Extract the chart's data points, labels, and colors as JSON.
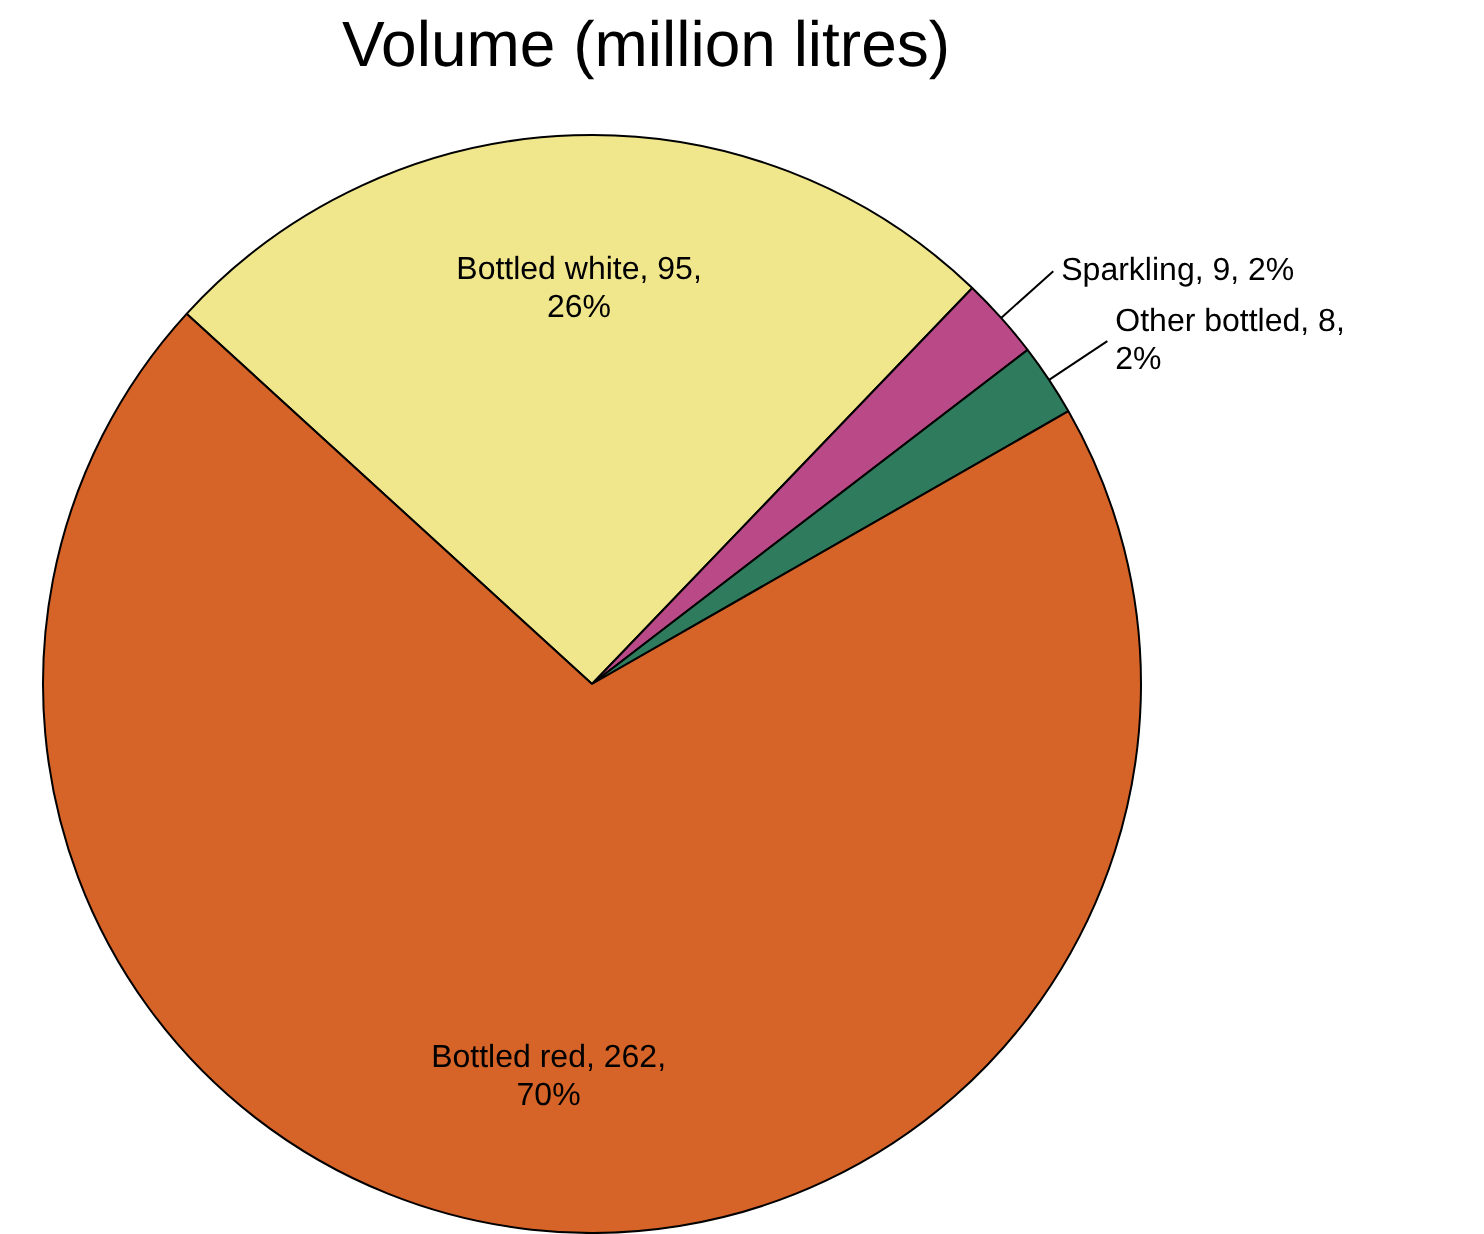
{
  "chart_data": {
    "type": "pie",
    "title": "Volume (million litres)",
    "categories": [
      "Bottled white",
      "Sparkling",
      "Other bottled",
      "Bottled red"
    ],
    "values": [
      95,
      9,
      8,
      262
    ],
    "colors": [
      "#f0e68c",
      "#b94a87",
      "#2e7b5e",
      "#d66327"
    ],
    "value_labels": [
      "95, 26%",
      "9, 2%",
      "8, 2%",
      "262, 70%"
    ]
  }
}
